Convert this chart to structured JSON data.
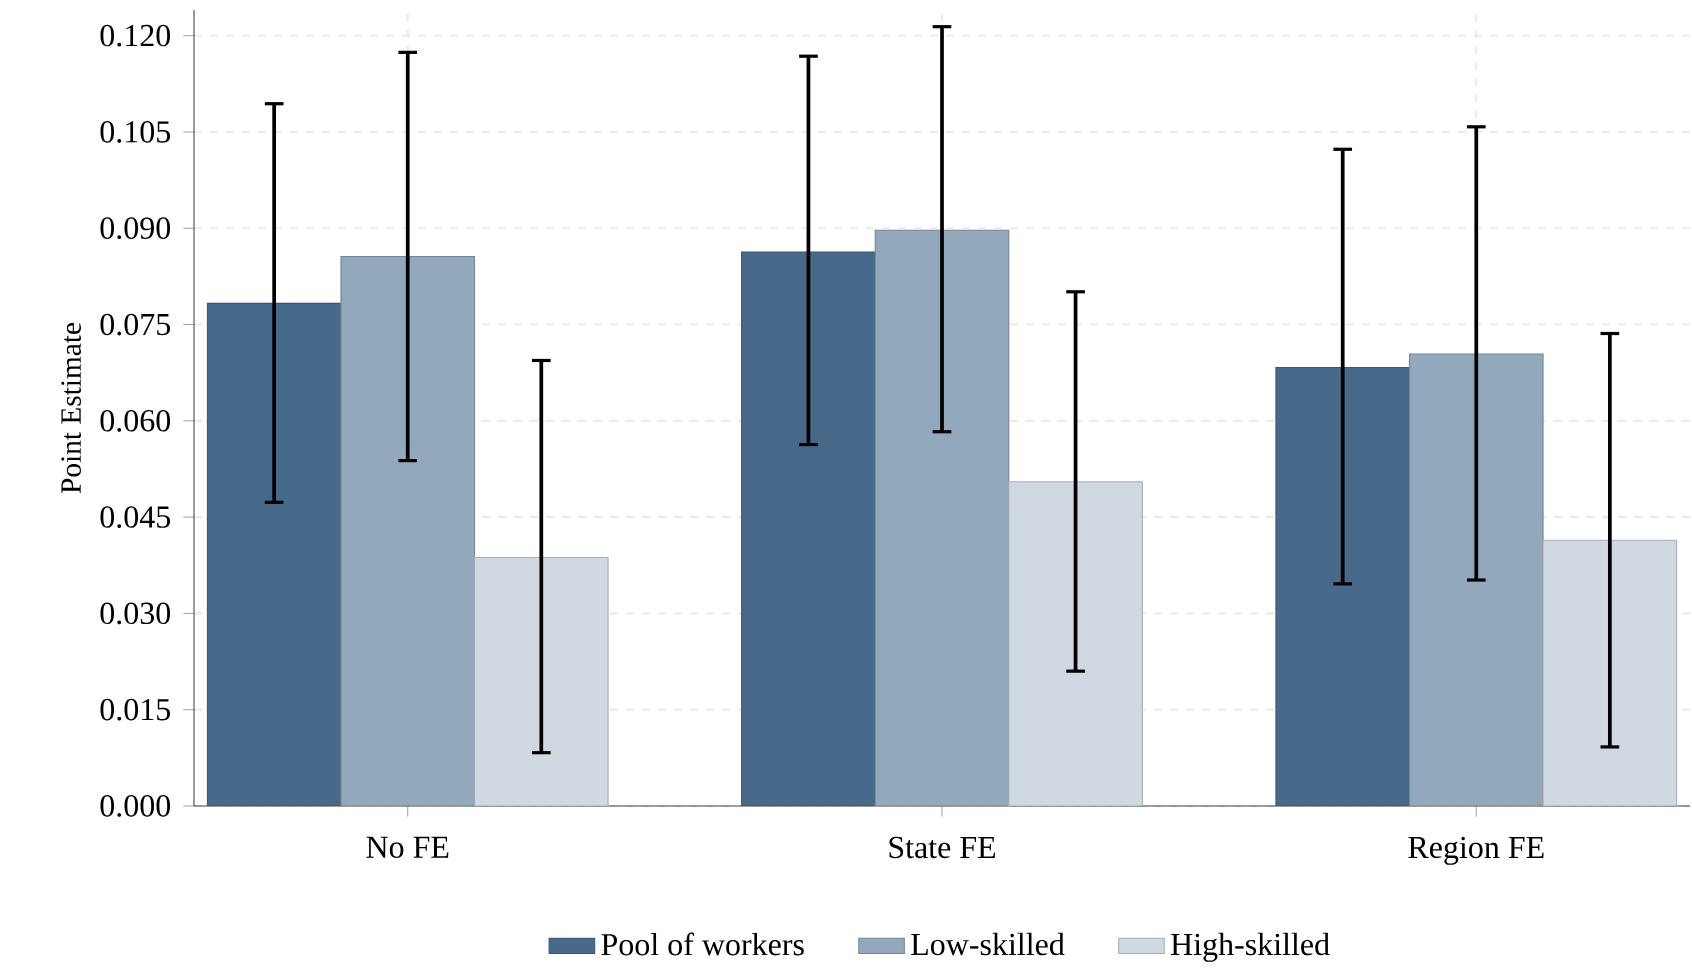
{
  "chart_data": {
    "type": "bar",
    "ylabel": "Point Estimate",
    "categories": [
      "No FE",
      "State FE",
      "Region FE"
    ],
    "series": [
      {
        "name": "Pool of workers",
        "color": "#476a8b",
        "values": [
          0.0783,
          0.0863,
          0.0683
        ],
        "errors": [
          [
            0.0473,
            0.1094
          ],
          [
            0.0563,
            0.1168
          ],
          [
            0.0346,
            0.1023
          ]
        ]
      },
      {
        "name": "Low-skilled",
        "color": "#92a8bc",
        "values": [
          0.0856,
          0.0897,
          0.0704
        ],
        "errors": [
          [
            0.0538,
            0.1174
          ],
          [
            0.0583,
            0.1214
          ],
          [
            0.0352,
            0.1058
          ]
        ]
      },
      {
        "name": "High-skilled",
        "color": "#d0d9e2",
        "values": [
          0.0387,
          0.0505,
          0.0414
        ],
        "errors": [
          [
            0.0083,
            0.0694
          ],
          [
            0.021,
            0.0801
          ],
          [
            0.0092,
            0.0736
          ]
        ]
      }
    ],
    "ylim": [
      0,
      0.124
    ],
    "yticks": [
      {
        "value": 0,
        "label": "0.000"
      },
      {
        "value": 0.015,
        "label": "0.015"
      },
      {
        "value": 0.03,
        "label": "0.030"
      },
      {
        "value": 0.045,
        "label": "0.045"
      },
      {
        "value": 0.06,
        "label": "0.060"
      },
      {
        "value": 0.075,
        "label": "0.075"
      },
      {
        "value": 0.09,
        "label": "0.090"
      },
      {
        "value": 0.105,
        "label": "0.105"
      },
      {
        "value": 0.12,
        "label": "0.120"
      }
    ],
    "grid": true,
    "legend": "bottom"
  }
}
